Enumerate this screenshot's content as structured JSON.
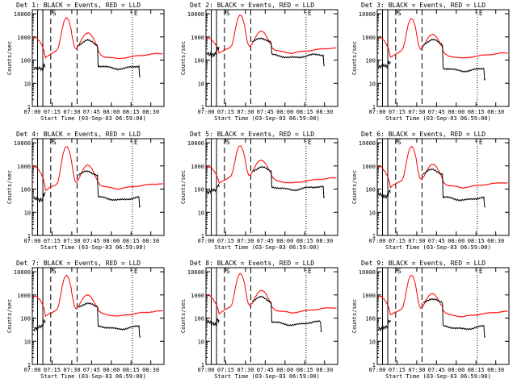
{
  "shared": {
    "type": "line",
    "scale": "log",
    "ylabel": "Counts/sec",
    "xlabel": "Start Time (03-Sep-03 06:59:00)",
    "x_tick_labels": [
      "07:00",
      "07:15",
      "07:30",
      "07:45",
      "08:00",
      "08:15",
      "08:30"
    ],
    "x_ticks_min": [
      0,
      15,
      30,
      45,
      60,
      75,
      90
    ],
    "xlim_min": [
      0,
      100
    ],
    "y_tick_labels": [
      "1",
      "10",
      "100",
      "1000",
      "10000"
    ],
    "y_tick_values": [
      1,
      10,
      100,
      1000,
      10000
    ],
    "ylim": [
      1,
      15000
    ],
    "series_colors": {
      "events": "#000000",
      "lld": "#ff0000"
    },
    "markers": [
      {
        "kind": "solid",
        "t": 4
      },
      {
        "kind": "solid",
        "t": 8
      },
      {
        "kind": "dashed",
        "t": 14,
        "label": "S"
      },
      {
        "kind": "dashed",
        "t": 34
      },
      {
        "kind": "dotted",
        "t": 76,
        "label": "E"
      }
    ]
  },
  "chart_data": [
    {
      "title": "Det  1: BLACK = Events, RED = LLD",
      "lld": {
        "base": 220,
        "peak": 6500,
        "hump": 1300,
        "tail": 190
      },
      "events": {
        "pre": 40,
        "hump": 700,
        "tail": 50,
        "end_t": 82
      }
    },
    {
      "title": "Det  2: BLACK = Events, RED = LLD",
      "lld": {
        "base": 320,
        "peak": 8000,
        "hump": 1400,
        "tail": 330
      },
      "events": {
        "pre": 200,
        "hump": 900,
        "tail": 150,
        "end_t": 90
      }
    },
    {
      "title": "Det  3: BLACK = Events, RED = LLD",
      "lld": {
        "base": 220,
        "peak": 6000,
        "hump": 1100,
        "tail": 200
      },
      "events": {
        "pre": 50,
        "hump": 750,
        "tail": 40,
        "end_t": 82
      }
    },
    {
      "title": "Det  4: BLACK = Events, RED = LLD",
      "lld": {
        "base": 140,
        "peak": 6500,
        "hump": 900,
        "tail": 170
      },
      "events": {
        "pre": 40,
        "hump": 600,
        "tail": 40,
        "end_t": 82
      }
    },
    {
      "title": "Det  5: BLACK = Events, RED = LLD",
      "lld": {
        "base": 300,
        "peak": 7000,
        "hump": 1500,
        "tail": 300
      },
      "events": {
        "pre": 80,
        "hump": 900,
        "tail": 110,
        "end_t": 90
      }
    },
    {
      "title": "Det  6: BLACK = Events, RED = LLD",
      "lld": {
        "base": 200,
        "peak": 6500,
        "hump": 950,
        "tail": 190
      },
      "events": {
        "pre": 55,
        "hump": 700,
        "tail": 40,
        "end_t": 82
      }
    },
    {
      "title": "Det  7: BLACK = Events, RED = LLD",
      "lld": {
        "base": 200,
        "peak": 6500,
        "hump": 800,
        "tail": 200
      },
      "events": {
        "pre": 40,
        "hump": 450,
        "tail": 40,
        "end_t": 82
      }
    },
    {
      "title": "Det  8: BLACK = Events, RED = LLD",
      "lld": {
        "base": 260,
        "peak": 8000,
        "hump": 1300,
        "tail": 280
      },
      "events": {
        "pre": 60,
        "hump": 800,
        "tail": 60,
        "end_t": 88
      }
    },
    {
      "title": "Det  9: BLACK = Events, RED = LLD",
      "lld": {
        "base": 220,
        "peak": 6500,
        "hump": 900,
        "tail": 190
      },
      "events": {
        "pre": 40,
        "hump": 700,
        "tail": 40,
        "end_t": 82
      }
    }
  ]
}
